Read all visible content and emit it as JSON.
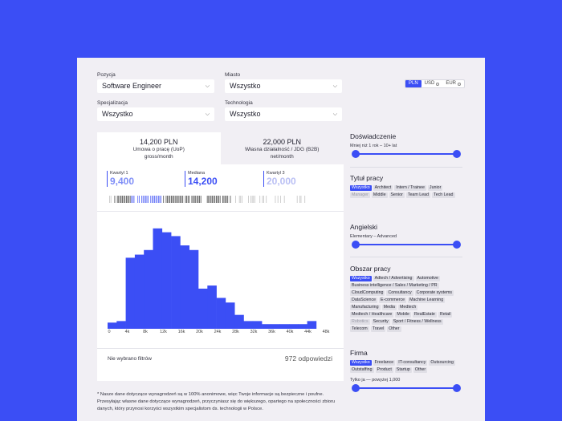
{
  "filters": {
    "position_label": "Pozycja",
    "position_value": "Software Engineer",
    "city_label": "Miasto",
    "city_value": "Wszystko",
    "spec_label": "Specjalizacja",
    "spec_value": "Wszystko",
    "tech_label": "Technologia",
    "tech_value": "Wszystko"
  },
  "currency": {
    "options": [
      "PLN",
      "USD",
      "EUR"
    ],
    "selected": "PLN"
  },
  "tabs": [
    {
      "value": "14,200 PLN",
      "line1": "Umowa o pracę (UoP)",
      "line2": "gross/month"
    },
    {
      "value": "22,000 PLN",
      "line1": "Własna działalność / JDG (B2B)",
      "line2": "net/month"
    }
  ],
  "quartiles": [
    {
      "label": "Kwartyl 1",
      "value": "9,400"
    },
    {
      "label": "Mediana",
      "value": "14,200"
    },
    {
      "label": "Kwartyl 3",
      "value": "20,000"
    }
  ],
  "chart_data": {
    "type": "bar",
    "x_ticks": [
      "0",
      "4k",
      "8k",
      "12k",
      "16k",
      "20k",
      "24k",
      "28k",
      "32k",
      "36k",
      "40k",
      "44k",
      "48k"
    ],
    "bin_width": 2000,
    "values": [
      8,
      10,
      92,
      96,
      102,
      130,
      125,
      120,
      108,
      102,
      52,
      56,
      40,
      34,
      18,
      10,
      10,
      6,
      6,
      6,
      6,
      6,
      10
    ],
    "ylim": [
      0,
      135
    ]
  },
  "summary": {
    "no_filter": "Nie wybrano filtrów",
    "answers": "972 odpowiedzi"
  },
  "footnote": "* Nasze dane dotyczące wynagrodzeń są w 100% anonimowe, więc Twoje informacje są bezpieczne i poufne. Przesyłając własne dane dotyczące wynagrodzeń, przyczyniasz się do większego, opartego na społeczności zbioru danych, który przynosi korzyści wszystkim specjalistom ds. technologii w Polsce.",
  "experience": {
    "title": "Doświadczenie",
    "range": "Mniej niż 1 rok – 10+ lat"
  },
  "job_title": {
    "title": "Tytuł pracy",
    "chips": [
      "Wszystko",
      "Architect",
      "Intern / Trainee",
      "Junior",
      "Manager",
      "Middle",
      "Senior",
      "Team Lead",
      "Tech Lead"
    ]
  },
  "english": {
    "title": "Angielski",
    "range": "Elementary – Advanced"
  },
  "area": {
    "title": "Obszar pracy",
    "chips": [
      "Wszystko",
      "Adtech / Advertising",
      "Automotive",
      "Business intelligence / Sales / Marketing / PR",
      "CloudComputing",
      "Consultancy",
      "Corporate systems",
      "DataScience",
      "E-commerce",
      "Machine Learning",
      "Manufacturing",
      "Media",
      "Medtech",
      "Medtech / Healthcare",
      "Mobile",
      "RealEstate",
      "Retail",
      "Robotics",
      "Security",
      "Sport / Fitness / Wellness",
      "Telecom",
      "Travel",
      "Other"
    ]
  },
  "company": {
    "title": "Firma",
    "chips": [
      "Wszystko",
      "Freelance",
      "IT-consultancy",
      "Outsourcing",
      "Outstaffing",
      "Product",
      "Startup",
      "Other"
    ],
    "range": "Tylko ja — powyżej 1,000"
  }
}
